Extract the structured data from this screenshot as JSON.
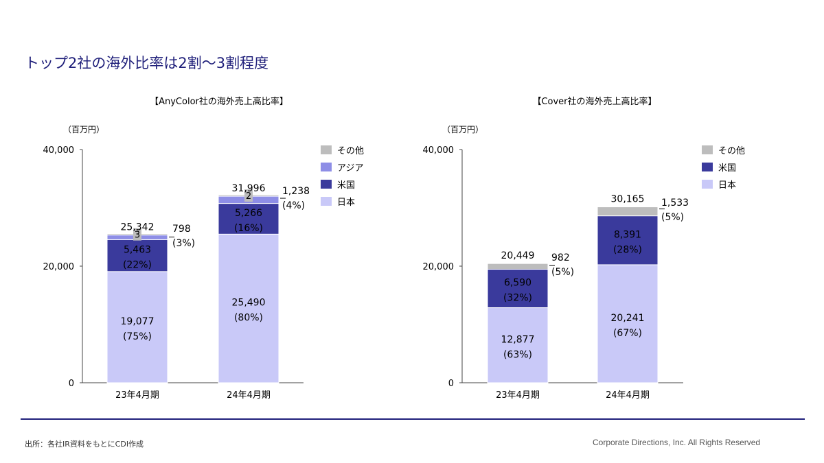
{
  "title": "トップ2社の海外比率は2割～3割程度",
  "source": "出所：各社IR資料をもとにCDI作成",
  "copyright": "Corporate Directions, Inc. All Rights Reserved",
  "colors": {
    "japan": "#c9c9f8",
    "us": "#3a3a9c",
    "asia": "#8e8ee6",
    "other": "#bdbdbd",
    "title": "#1f1f7a"
  },
  "chart_data": [
    {
      "type": "bar",
      "stacked": true,
      "title": "【AnyColor社の海外売上高比率】",
      "unit_label": "（百万円）",
      "categories": [
        "23年4月期",
        "24年4月期"
      ],
      "ylim": [
        0,
        40000
      ],
      "yticks": [
        "0",
        "20,000",
        "40,000"
      ],
      "legend_position": "right",
      "legend": [
        "その他",
        "アジア",
        "米国",
        "日本"
      ],
      "series": [
        {
          "name": "日本",
          "key": "japan",
          "values": [
            19077,
            25490
          ],
          "labels": [
            "19,077",
            "25,490"
          ],
          "pcts": [
            "(75%)",
            "(80%)"
          ]
        },
        {
          "name": "米国",
          "key": "us",
          "values": [
            5463,
            5266
          ],
          "labels": [
            "5,463",
            "5,266"
          ],
          "pcts": [
            "(22%)",
            "(16%)"
          ]
        },
        {
          "name": "アジア",
          "key": "asia",
          "values": [
            798,
            1238
          ]
        },
        {
          "name": "その他",
          "key": "other",
          "values": [
            3,
            2
          ],
          "labels": [
            "3",
            "2"
          ]
        }
      ],
      "totals": [
        "25,342",
        "31,996"
      ],
      "overseas_callouts": [
        {
          "value": "798",
          "pct": "(3%)"
        },
        {
          "value": "1,238",
          "pct": "(4%)"
        }
      ]
    },
    {
      "type": "bar",
      "stacked": true,
      "title": "【Cover社の海外売上高比率】",
      "unit_label": "（百万円）",
      "categories": [
        "23年4月期",
        "24年4月期"
      ],
      "ylim": [
        0,
        40000
      ],
      "yticks": [
        "0",
        "20,000",
        "40,000"
      ],
      "legend_position": "right",
      "legend": [
        "その他",
        "米国",
        "日本"
      ],
      "series": [
        {
          "name": "日本",
          "key": "japan",
          "values": [
            12877,
            20241
          ],
          "labels": [
            "12,877",
            "20,241"
          ],
          "pcts": [
            "(63%)",
            "(67%)"
          ]
        },
        {
          "name": "米国",
          "key": "us",
          "values": [
            6590,
            8391
          ],
          "labels": [
            "6,590",
            "8,391"
          ],
          "pcts": [
            "(32%)",
            "(28%)"
          ]
        },
        {
          "name": "その他",
          "key": "other",
          "values": [
            982,
            1533
          ]
        }
      ],
      "totals": [
        "20,449",
        "30,165"
      ],
      "overseas_callouts": [
        {
          "value": "982",
          "pct": "(5%)"
        },
        {
          "value": "1,533",
          "pct": "(5%)"
        }
      ]
    }
  ]
}
